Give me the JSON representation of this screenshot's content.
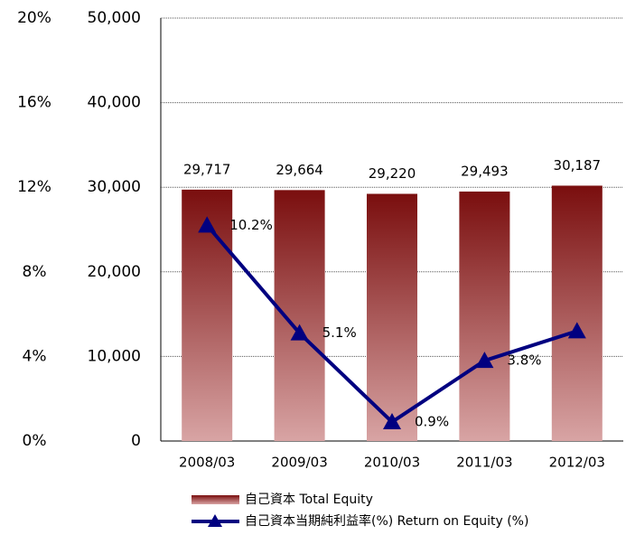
{
  "chart_data": {
    "type": "bar",
    "categories": [
      "2008/03",
      "2009/03",
      "2010/03",
      "2011/03",
      "2012/03"
    ],
    "series": [
      {
        "name": "自己資本 Total Equity",
        "type": "bar",
        "color": "#7a0e0e",
        "values": [
          29717,
          29664,
          29220,
          29493,
          30187
        ],
        "value_labels": [
          "29,717",
          "29,664",
          "29,220",
          "29,493",
          "30,187"
        ]
      },
      {
        "name": "自己資本当期純利益率(%) Return on Equity (%)",
        "type": "line",
        "axis": "y2",
        "color": "#000080",
        "values": [
          10.2,
          5.1,
          0.9,
          3.8,
          5.2
        ],
        "value_labels": [
          "10.2%",
          "5.1%",
          "0.9%",
          "3.8%",
          null
        ]
      }
    ],
    "ylim": [
      0,
      50000
    ],
    "yticks": [
      0,
      {
        "value": 10000,
        "label": "10,000"
      },
      {
        "value": 20000,
        "label": "20,000"
      },
      {
        "value": 30000,
        "label": "30,000"
      },
      {
        "value": 40000,
        "label": "40,000"
      },
      {
        "value": 50000,
        "label": "50,000"
      }
    ],
    "y2lim": [
      0,
      20
    ],
    "y2ticks": [
      {
        "value": 0,
        "label": "0%"
      },
      {
        "value": 4,
        "label": "4%"
      },
      {
        "value": 8,
        "label": "8%"
      },
      {
        "value": 12,
        "label": "12%"
      },
      {
        "value": 16,
        "label": "16%"
      },
      {
        "value": 20,
        "label": "20%"
      }
    ],
    "grid": true
  }
}
